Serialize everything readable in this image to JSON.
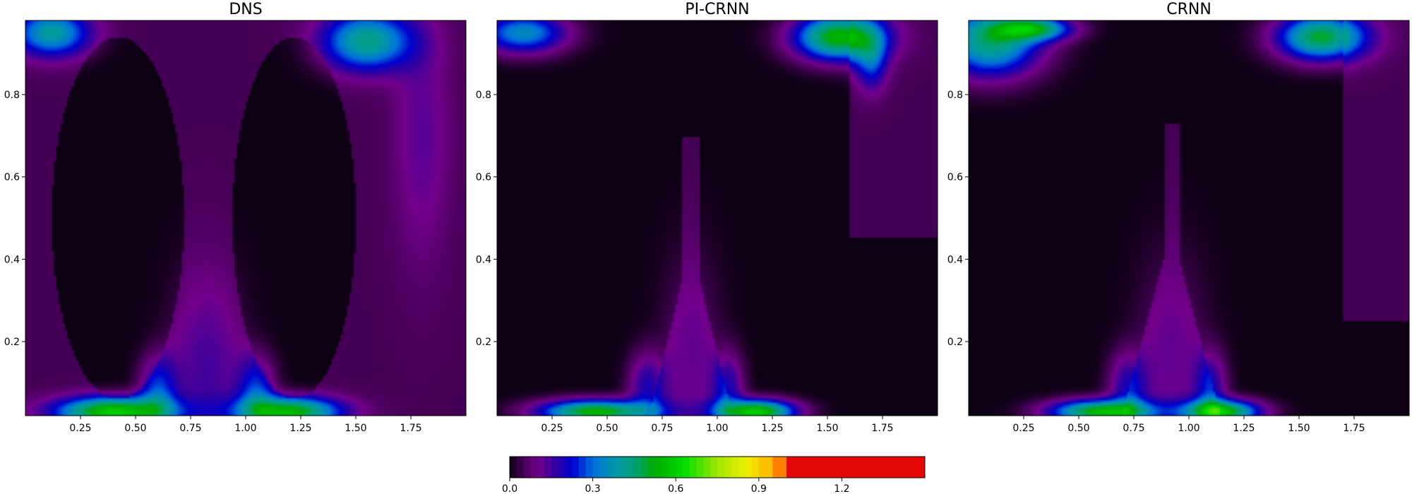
{
  "chart_data": [
    {
      "type": "heatmap",
      "title": "DNS",
      "xlim": [
        0.0,
        2.0
      ],
      "ylim": [
        0.02,
        0.98
      ],
      "xticks": [
        "0.25",
        "0.50",
        "0.75",
        "1.00",
        "1.25",
        "1.50",
        "1.75"
      ],
      "yticks": [
        "0.2",
        "0.4",
        "0.6",
        "0.8"
      ],
      "xtick_values": [
        0.25,
        0.5,
        0.75,
        1.0,
        1.25,
        1.5,
        1.75
      ],
      "ytick_values": [
        0.2,
        0.4,
        0.6,
        0.8
      ],
      "variant": "dns"
    },
    {
      "type": "heatmap",
      "title": "PI-CRNN",
      "xlim": [
        0.0,
        2.0
      ],
      "ylim": [
        0.02,
        0.98
      ],
      "xticks": [
        "0.25",
        "0.50",
        "0.75",
        "1.00",
        "1.25",
        "1.50",
        "1.75"
      ],
      "yticks": [
        "0.2",
        "0.4",
        "0.6",
        "0.8"
      ],
      "xtick_values": [
        0.25,
        0.5,
        0.75,
        1.0,
        1.25,
        1.5,
        1.75
      ],
      "ytick_values": [
        0.2,
        0.4,
        0.6,
        0.8
      ],
      "variant": "picrnn"
    },
    {
      "type": "heatmap",
      "title": "CRNN",
      "xlim": [
        0.0,
        2.0
      ],
      "ylim": [
        0.02,
        0.98
      ],
      "xticks": [
        "0.25",
        "0.50",
        "0.75",
        "1.00",
        "1.25",
        "1.50",
        "1.75"
      ],
      "yticks": [
        "0.2",
        "0.4",
        "0.6",
        "0.8"
      ],
      "xtick_values": [
        0.25,
        0.5,
        0.75,
        1.0,
        1.25,
        1.5,
        1.75
      ],
      "ytick_values": [
        0.2,
        0.4,
        0.6,
        0.8
      ],
      "variant": "crnn"
    }
  ],
  "colorbar": {
    "orientation": "horizontal",
    "range": [
      0.0,
      1.5
    ],
    "ticks": [
      "0.0",
      "0.3",
      "0.6",
      "0.9",
      "1.2"
    ],
    "tick_values": [
      0.0,
      0.3,
      0.6,
      0.9,
      1.2
    ],
    "colormap": "nipy_spectral",
    "levels": [
      0.0,
      0.025,
      0.05,
      0.075,
      0.1,
      0.125,
      0.15,
      0.175,
      0.2,
      0.225,
      0.25,
      0.275,
      0.3,
      0.325,
      0.35,
      0.375,
      0.4,
      0.425,
      0.45,
      0.475,
      0.5,
      0.525,
      0.55,
      0.575,
      0.6,
      0.625,
      0.65,
      0.675,
      0.7,
      0.725,
      0.75,
      0.775,
      0.8,
      0.825,
      0.85,
      0.875,
      0.9,
      0.95,
      1.0,
      1.5
    ]
  }
}
